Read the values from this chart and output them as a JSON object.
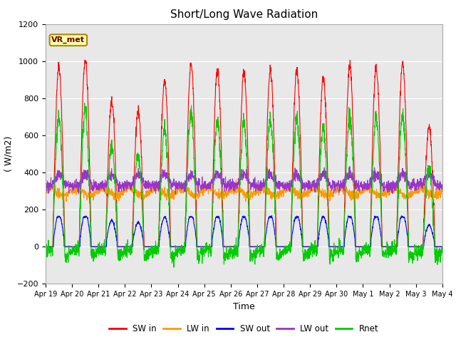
{
  "title": "Short/Long Wave Radiation",
  "xlabel": "Time",
  "ylabel": "( W/m2)",
  "ylim": [
    -200,
    1200
  ],
  "yticks": [
    -200,
    0,
    200,
    400,
    600,
    800,
    1000,
    1200
  ],
  "xtick_labels": [
    "Apr 19",
    "Apr 20",
    "Apr 21",
    "Apr 22",
    "Apr 23",
    "Apr 24",
    "Apr 25",
    "Apr 26",
    "Apr 27",
    "Apr 28",
    "Apr 29",
    "Apr 30",
    "May 1",
    "May 2",
    "May 3",
    "May 4"
  ],
  "annotation": "VR_met",
  "colors": {
    "SW_in": "#ff0000",
    "LW_in": "#ff9900",
    "SW_out": "#0000ff",
    "LW_out": "#9933cc",
    "Rnet": "#00cc00"
  },
  "legend_labels": [
    "SW in",
    "LW in",
    "SW out",
    "LW out",
    "Rnet"
  ],
  "plot_bg_color": "#e8e8e8",
  "n_days": 15,
  "pts_per_day": 144
}
